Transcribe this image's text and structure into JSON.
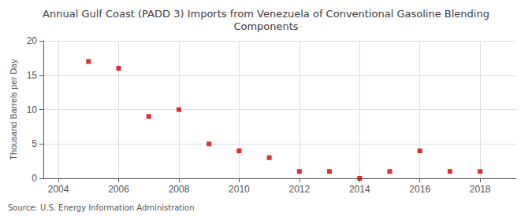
{
  "chart_data": {
    "type": "scatter",
    "title": "Annual Gulf Coast (PADD 3) Imports from Venezuela of Conventional Gasoline Blending\nComponents",
    "ylabel": "Thousand Barrels per Day",
    "annotation": "Source: U.S. Energy Information Administration",
    "x": [
      2005,
      2006,
      2007,
      2008,
      2009,
      2010,
      2011,
      2012,
      2013,
      2014,
      2015,
      2016,
      2017,
      2018
    ],
    "values": [
      17,
      16,
      9,
      10,
      5,
      4,
      3,
      1,
      1,
      0,
      1,
      4,
      1,
      1
    ],
    "color": "#cc0000",
    "marker": "square",
    "xlim": [
      2003.5,
      2019.2
    ],
    "xticks": [
      2004,
      2006,
      2008,
      2010,
      2012,
      2014,
      2016,
      2018
    ],
    "ylim": [
      0,
      20
    ],
    "yticks": [
      0,
      5,
      10,
      15,
      20
    ],
    "grid": true
  }
}
